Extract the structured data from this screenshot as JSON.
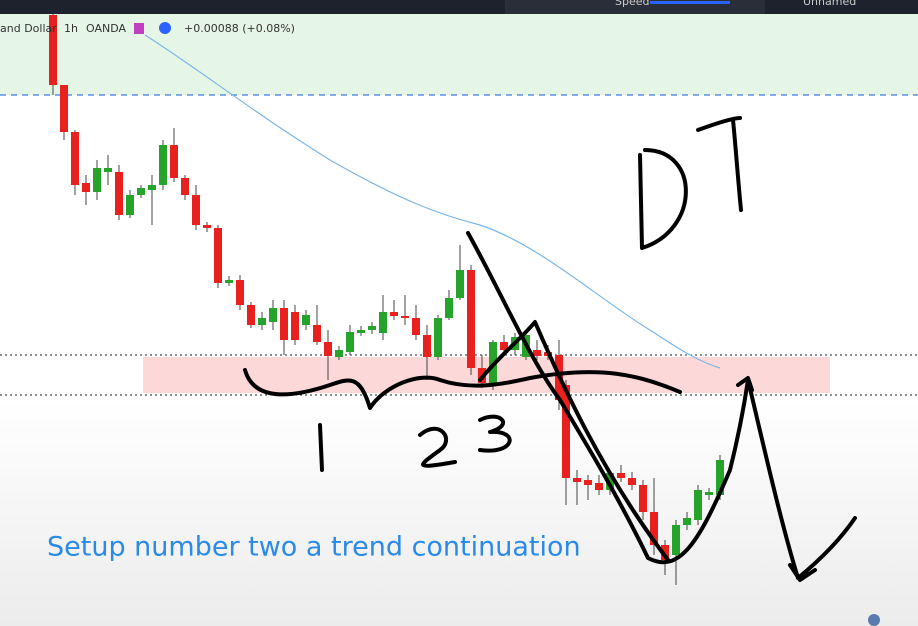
{
  "toolbar": {
    "speed_label": "Speed",
    "layout_name": "Unnamed"
  },
  "legend": {
    "symbol": "and Dollar",
    "interval": "1h",
    "source": "OANDA",
    "change": "+0.00088 (+0.08%)"
  },
  "caption": "Setup number two a trend continuation"
}
